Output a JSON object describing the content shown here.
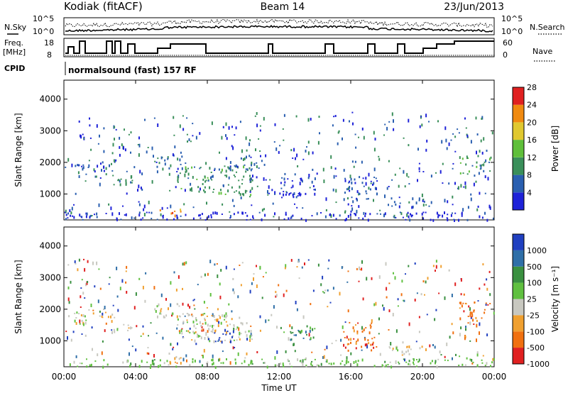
{
  "header": {
    "station": "Kodiak (fitACF)",
    "beam": "Beam 14",
    "date": "23/Jun/2013"
  },
  "strip_labels": {
    "nsky": "N.Sky",
    "nsearch": "N.Search",
    "freq": "Freq.",
    "freq_unit": "[MHz]",
    "nave": "Nave",
    "cpid": "CPID",
    "noise_top": "10^5",
    "noise_bottom": "10^0",
    "freq_top": "18",
    "freq_bottom": "8",
    "nave_top": "60",
    "nave_bottom": "0",
    "mode": "normalsound (fast) 157 RF"
  },
  "chart_data": [
    {
      "type": "heatmap",
      "name": "power",
      "ylabel": "Slant Range [km]",
      "xlabel": "Time UT",
      "ylim": [
        180,
        4600
      ],
      "xlim_hours": [
        0,
        24
      ],
      "x_ticks": [
        "00:00",
        "04:00",
        "08:00",
        "12:00",
        "16:00",
        "20:00",
        "00:00"
      ],
      "y_ticks": [
        1000,
        2000,
        3000,
        4000
      ],
      "colorbar": {
        "label": "Power [dB]",
        "ticks": [
          "4",
          "8",
          "12",
          "16",
          "20",
          "24",
          "28"
        ],
        "colors": [
          "#1e22d8",
          "#2a5fb0",
          "#3a8f5a",
          "#5fbf3a",
          "#e0c830",
          "#f08a10",
          "#e02020"
        ]
      },
      "patches": [
        {
          "t0": 0.5,
          "t1": 2.8,
          "r0": 1550,
          "r1": 1950,
          "level": 1
        },
        {
          "t0": 2.5,
          "t1": 3.8,
          "r0": 1300,
          "r1": 1600,
          "level": 2
        },
        {
          "t0": 5.0,
          "t1": 6.5,
          "r0": 1700,
          "r1": 2200,
          "level": 1
        },
        {
          "t0": 5.3,
          "t1": 6.6,
          "r0": 330,
          "r1": 560,
          "level": 5
        },
        {
          "t0": 6.3,
          "t1": 10.5,
          "r0": 1000,
          "r1": 1900,
          "level": 2
        },
        {
          "t0": 9.0,
          "t1": 11.2,
          "r0": 1800,
          "r1": 2250,
          "level": 1
        },
        {
          "t0": 12.0,
          "t1": 14.0,
          "r0": 900,
          "r1": 1600,
          "level": 0
        },
        {
          "t0": 15.5,
          "t1": 17.5,
          "r0": 800,
          "r1": 1600,
          "level": 1
        },
        {
          "t0": 18.0,
          "t1": 20.5,
          "r0": 600,
          "r1": 900,
          "level": 1
        },
        {
          "t0": 22.0,
          "t1": 23.8,
          "r0": 1650,
          "r1": 2250,
          "level": 2
        },
        {
          "t0": 0.0,
          "t1": 24.0,
          "r0": 200,
          "r1": 450,
          "level": 0
        }
      ]
    },
    {
      "type": "heatmap",
      "name": "velocity",
      "ylabel": "Slant Range [km]",
      "xlabel": "Time UT",
      "ylim": [
        180,
        4600
      ],
      "xlim_hours": [
        0,
        24
      ],
      "x_ticks": [
        "00:00",
        "04:00",
        "08:00",
        "12:00",
        "16:00",
        "20:00",
        "00:00"
      ],
      "y_ticks": [
        1000,
        2000,
        3000,
        4000
      ],
      "colorbar": {
        "label": "Velocity [m s⁻¹]",
        "ticks": [
          "1000",
          "500",
          "100",
          "25",
          "-25",
          "-100",
          "-500",
          "-1000"
        ],
        "colors": [
          "#2040c0",
          "#2f6fa8",
          "#3a9040",
          "#60c040",
          "#c8c8c0",
          "#f0a030",
          "#f07010",
          "#e02020"
        ]
      },
      "patches": [
        {
          "t0": 0.5,
          "t1": 2.8,
          "r0": 1550,
          "r1": 1950,
          "level": 4
        },
        {
          "t0": 2.5,
          "t1": 3.8,
          "r0": 1300,
          "r1": 1600,
          "level": 4
        },
        {
          "t0": 5.0,
          "t1": 6.5,
          "r0": 1700,
          "r1": 2200,
          "level": 4
        },
        {
          "t0": 5.3,
          "t1": 6.6,
          "r0": 330,
          "r1": 560,
          "level": 5
        },
        {
          "t0": 6.3,
          "t1": 10.5,
          "r0": 1000,
          "r1": 1900,
          "level": 4
        },
        {
          "t0": 8.0,
          "t1": 9.5,
          "r0": 1000,
          "r1": 1400,
          "level": 0
        },
        {
          "t0": 12.5,
          "t1": 14.0,
          "r0": 900,
          "r1": 1500,
          "level": 2
        },
        {
          "t0": 15.5,
          "t1": 17.5,
          "r0": 800,
          "r1": 1600,
          "level": 6
        },
        {
          "t0": 18.0,
          "t1": 20.5,
          "r0": 600,
          "r1": 900,
          "level": 4
        },
        {
          "t0": 22.0,
          "t1": 23.8,
          "r0": 1650,
          "r1": 2250,
          "level": 6
        },
        {
          "t0": 0.0,
          "t1": 24.0,
          "r0": 200,
          "r1": 450,
          "level": 3
        }
      ]
    }
  ]
}
